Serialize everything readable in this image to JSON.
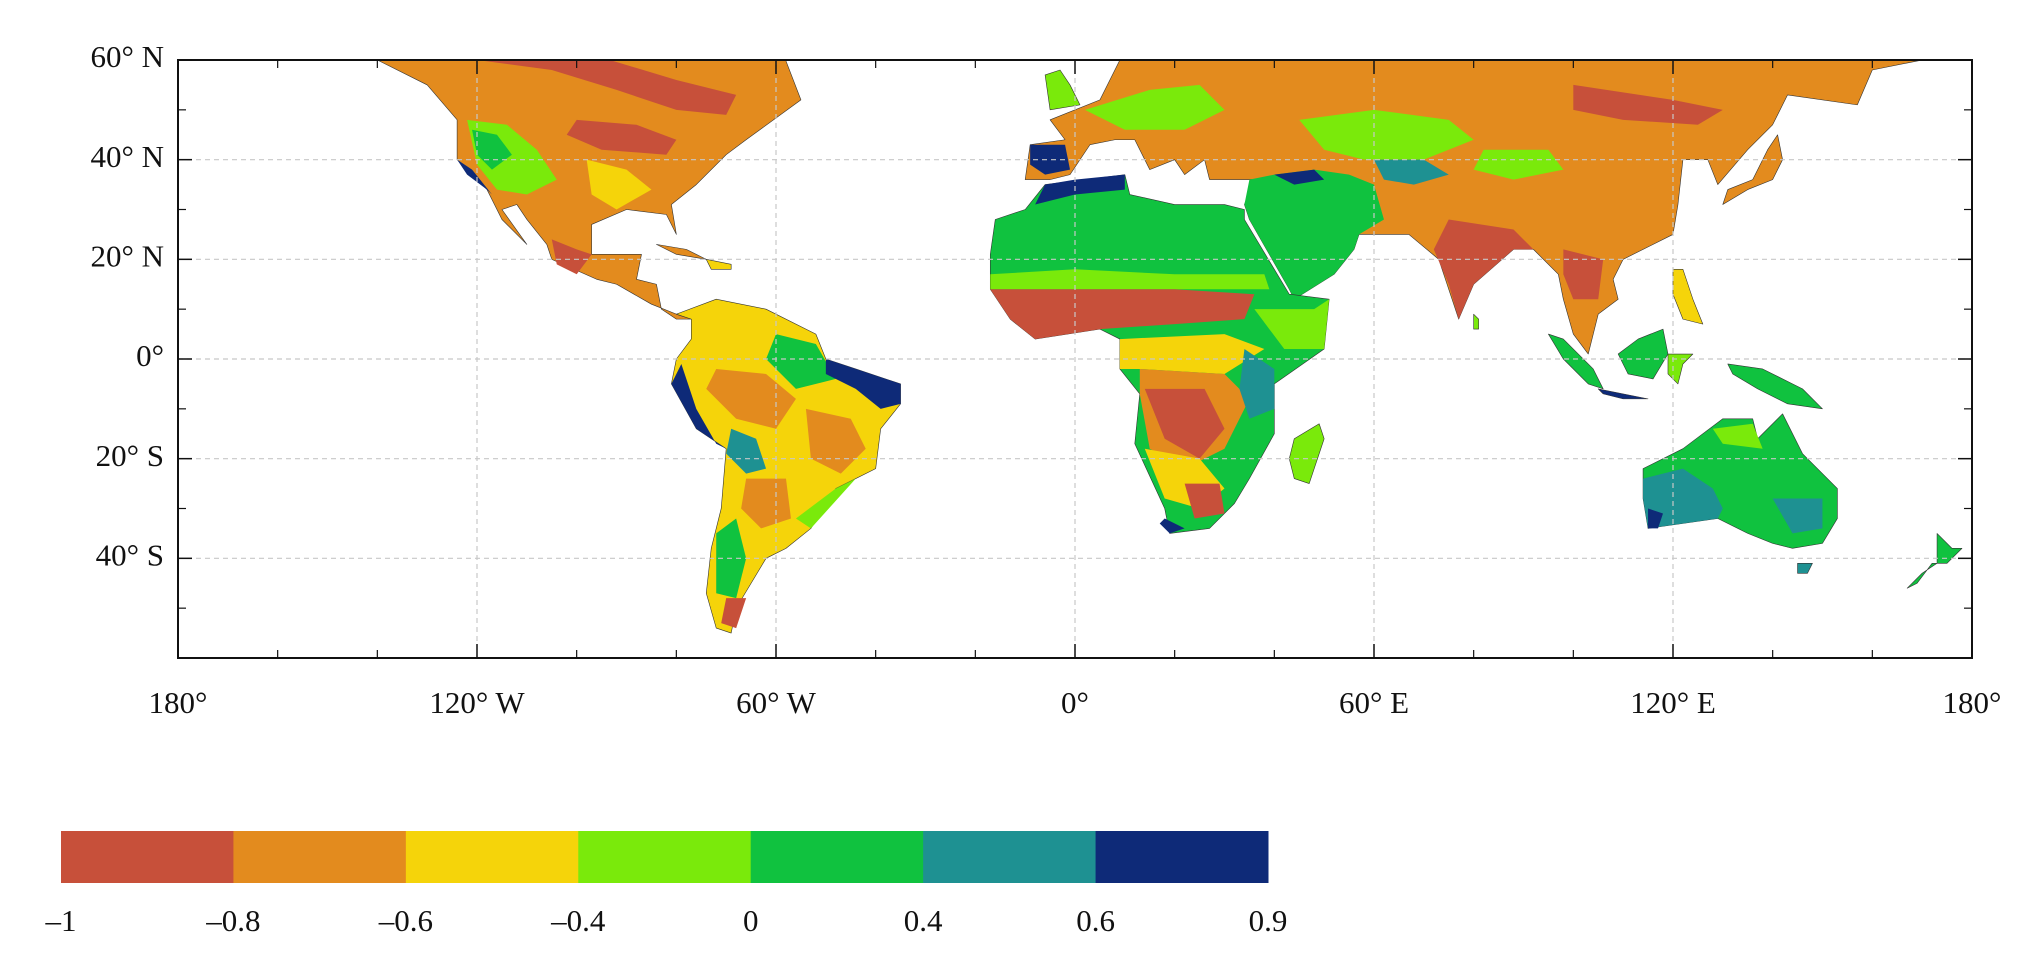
{
  "chart_data": {
    "type": "map",
    "xlim": [
      -180,
      180
    ],
    "ylim": [
      -60,
      60
    ],
    "xticks": [
      {
        "value": -180,
        "label": "180°"
      },
      {
        "value": -120,
        "label": "120° W"
      },
      {
        "value": -60,
        "label": "60° W"
      },
      {
        "value": 0,
        "label": "0°"
      },
      {
        "value": 60,
        "label": "60° E"
      },
      {
        "value": 120,
        "label": "120° E"
      },
      {
        "value": 180,
        "label": "180°"
      }
    ],
    "yticks": [
      {
        "value": 60,
        "label": "60° N"
      },
      {
        "value": 40,
        "label": "40° N"
      },
      {
        "value": 20,
        "label": "20° N"
      },
      {
        "value": 0,
        "label": "0°"
      },
      {
        "value": -20,
        "label": "20° S"
      },
      {
        "value": -40,
        "label": "40° S"
      }
    ],
    "x_minor_ticks": [
      -160,
      -140,
      -100,
      -80,
      -40,
      -20,
      20,
      40,
      80,
      100,
      140,
      160
    ],
    "y_minor_ticks": [
      50,
      30,
      10,
      -10,
      -30,
      -50
    ],
    "grid": true,
    "colorbar": {
      "boundaries": [
        {
          "value": -1,
          "label": "–1"
        },
        {
          "value": -0.8,
          "label": "–0.8"
        },
        {
          "value": -0.6,
          "label": "–0.6"
        },
        {
          "value": -0.4,
          "label": "–0.4"
        },
        0,
        0.4,
        0.6,
        0.9
      ],
      "colors": [
        "#c7503a",
        "#e38b1e",
        "#f5d40a",
        "#7aea0b",
        "#10c23f",
        "#1e9192",
        "#0e2a78"
      ]
    }
  }
}
